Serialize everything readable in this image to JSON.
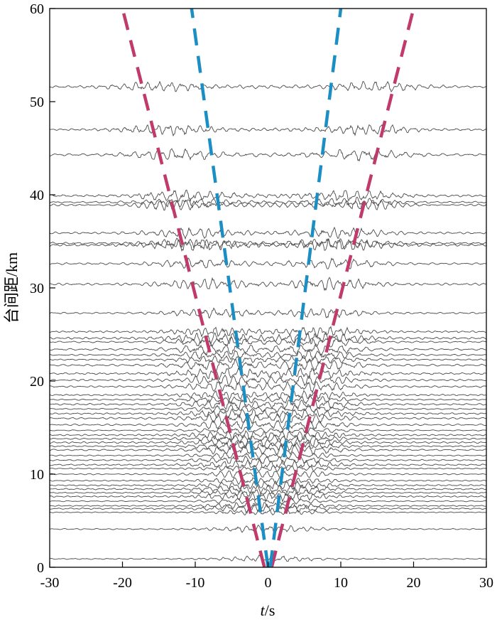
{
  "chart_data": {
    "type": "line",
    "title": "",
    "xlabel_italic": "t",
    "xlabel_unit": "/s",
    "ylabel": "台间距/km",
    "xlim": [
      -30,
      30
    ],
    "ylim": [
      0,
      60
    ],
    "xticks": [
      -30,
      -20,
      -10,
      0,
      10,
      20,
      30
    ],
    "yticks": [
      0,
      10,
      20,
      30,
      40,
      50,
      60
    ],
    "trace_color": "#4a4a4a",
    "moveout_lines": [
      {
        "name": "",
        "color": "#c03a6b",
        "points": [
          [
            -0.5,
            0
          ],
          [
            -20,
            60
          ]
        ]
      },
      {
        "name": "",
        "color": "#c03a6b",
        "points": [
          [
            0.5,
            0
          ],
          [
            20,
            60
          ]
        ]
      },
      {
        "name": "",
        "color": "#1b8fc4",
        "points": [
          [
            0,
            0
          ],
          [
            -10.5,
            60
          ]
        ]
      },
      {
        "name": "",
        "color": "#1b8fc4",
        "points": [
          [
            0.3,
            0
          ],
          [
            10,
            60
          ]
        ]
      }
    ],
    "trace_distances_km": [
      0.9,
      4.1,
      5.9,
      6.3,
      6.6,
      7.1,
      7.6,
      8.0,
      8.4,
      8.8,
      9.3,
      10.0,
      10.6,
      11.0,
      11.5,
      12.0,
      12.6,
      13.0,
      13.4,
      13.8,
      14.2,
      14.7,
      15.3,
      16.0,
      16.5,
      17.0,
      17.5,
      18.0,
      18.5,
      19.4,
      20.1,
      20.8,
      21.7,
      22.3,
      22.8,
      23.4,
      24.2,
      24.6,
      25.3,
      27.3,
      30.4,
      32.6,
      34.6,
      34.8,
      35.9,
      38.9,
      39.2,
      39.9,
      44.3,
      47.0,
      51.6
    ]
  }
}
